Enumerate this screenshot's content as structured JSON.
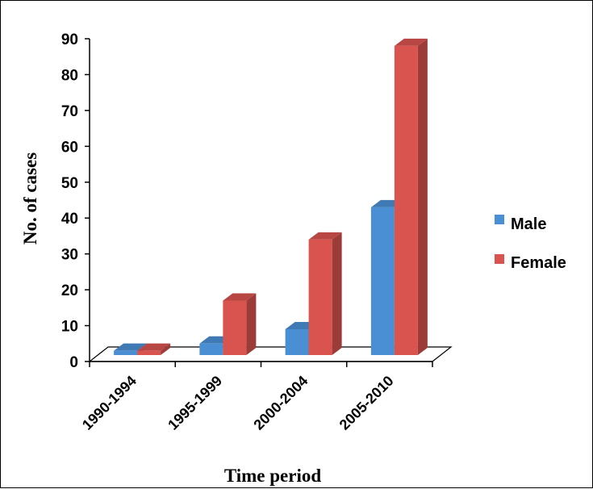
{
  "chart_data": {
    "type": "bar",
    "style": "3d-clustered-column",
    "categories": [
      "1990-1994",
      "1995-1999",
      "2000-2004",
      "2005-2010"
    ],
    "series": [
      {
        "name": "Male",
        "values": [
          3,
          5,
          9,
          43
        ],
        "color": "#4a8fd4"
      },
      {
        "name": "Female",
        "values": [
          3,
          17,
          34,
          88
        ],
        "color": "#d9534f"
      }
    ],
    "xlabel": "Time period",
    "ylabel": "No. of cases",
    "ylim": [
      0,
      90
    ],
    "yticks": [
      0,
      10,
      20,
      30,
      40,
      50,
      60,
      70,
      80,
      90
    ],
    "grid": false,
    "legend_position": "right"
  }
}
